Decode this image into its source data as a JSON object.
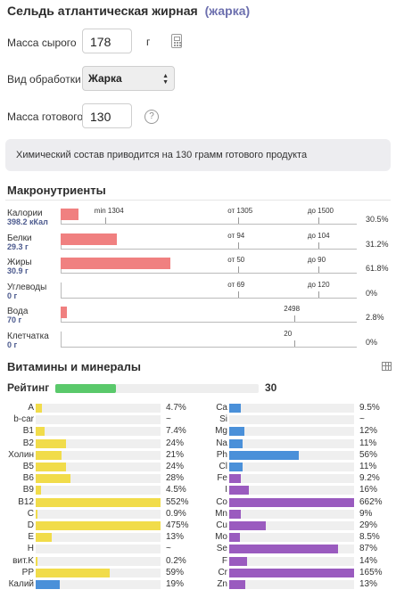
{
  "header": {
    "title": "Сельдь атлантическая жирная",
    "subtitle": "(жарка)"
  },
  "form": {
    "raw_mass_label": "Масса сырого",
    "raw_mass_value": "178",
    "raw_mass_unit": "г",
    "processing_label": "Вид обработки",
    "processing_value": "Жарка",
    "cooked_mass_label": "Масса готового",
    "cooked_mass_value": "130",
    "help_symbol": "?"
  },
  "note": "Химический состав приводится на 130 грамм готового продукта",
  "macros": {
    "title": "Макронутриенты",
    "items": [
      {
        "name": "Калории",
        "value": "398.2 кКал",
        "pct": "30.5%",
        "fill": 0.06,
        "ticks": [
          {
            "label": "min 1304",
            "pos": 0.15
          },
          {
            "label": "от 1305",
            "pos": 0.6
          },
          {
            "label": "до 1500",
            "pos": 0.87
          }
        ]
      },
      {
        "name": "Белки",
        "value": "29.3 г",
        "pct": "31.2%",
        "fill": 0.19,
        "ticks": [
          {
            "label": "от 94",
            "pos": 0.6
          },
          {
            "label": "до 104",
            "pos": 0.87
          }
        ]
      },
      {
        "name": "Жиры",
        "value": "30.9 г",
        "pct": "61.8%",
        "fill": 0.37,
        "ticks": [
          {
            "label": "от 50",
            "pos": 0.6
          },
          {
            "label": "до 90",
            "pos": 0.87
          }
        ]
      },
      {
        "name": "Углеводы",
        "value": "0 г",
        "pct": "0%",
        "fill": 0,
        "ticks": [
          {
            "label": "от 69",
            "pos": 0.6
          },
          {
            "label": "до 120",
            "pos": 0.87
          }
        ]
      },
      {
        "name": "Вода",
        "value": "70 г",
        "pct": "2.8%",
        "fill": 0.02,
        "ticks": [
          {
            "label": "2498",
            "pos": 0.79
          }
        ]
      },
      {
        "name": "Клетчатка",
        "value": "0 г",
        "pct": "0%",
        "fill": 0,
        "ticks": [
          {
            "label": "20",
            "pos": 0.79
          }
        ]
      }
    ]
  },
  "vitamins": {
    "title": "Витамины и минералы",
    "rating_label": "Рейтинг",
    "rating_value": "30",
    "rating_fill": 0.3,
    "colors": {
      "vitamin": "#f1dc4a",
      "mineral_blue": "#4a90d9",
      "mineral_purple": "#9a5bbf",
      "rating": "#5ac96b",
      "macro": "#f08080"
    },
    "left": [
      {
        "name": "A",
        "pct": "4.7%",
        "fill": 0.047,
        "color": "vitamin"
      },
      {
        "name": "b-car",
        "pct": "~",
        "fill": 0,
        "color": "vitamin"
      },
      {
        "name": "B1",
        "pct": "7.4%",
        "fill": 0.074,
        "color": "vitamin"
      },
      {
        "name": "B2",
        "pct": "24%",
        "fill": 0.24,
        "color": "vitamin"
      },
      {
        "name": "Холин",
        "pct": "21%",
        "fill": 0.21,
        "color": "vitamin"
      },
      {
        "name": "B5",
        "pct": "24%",
        "fill": 0.24,
        "color": "vitamin"
      },
      {
        "name": "B6",
        "pct": "28%",
        "fill": 0.28,
        "color": "vitamin"
      },
      {
        "name": "B9",
        "pct": "4.5%",
        "fill": 0.045,
        "color": "vitamin"
      },
      {
        "name": "B12",
        "pct": "552%",
        "fill": 1,
        "color": "vitamin"
      },
      {
        "name": "C",
        "pct": "0.9%",
        "fill": 0.009,
        "color": "vitamin"
      },
      {
        "name": "D",
        "pct": "475%",
        "fill": 1,
        "color": "vitamin"
      },
      {
        "name": "E",
        "pct": "13%",
        "fill": 0.13,
        "color": "vitamin"
      },
      {
        "name": "H",
        "pct": "~",
        "fill": 0,
        "color": "vitamin"
      },
      {
        "name": "вит.K",
        "pct": "0.2%",
        "fill": 0.002,
        "color": "vitamin"
      },
      {
        "name": "PP",
        "pct": "59%",
        "fill": 0.59,
        "color": "vitamin"
      },
      {
        "name": "Калий",
        "pct": "19%",
        "fill": 0.19,
        "color": "mineral_blue"
      }
    ],
    "right": [
      {
        "name": "Ca",
        "pct": "9.5%",
        "fill": 0.095,
        "color": "mineral_blue"
      },
      {
        "name": "Si",
        "pct": "~",
        "fill": 0,
        "color": "mineral_blue"
      },
      {
        "name": "Mg",
        "pct": "12%",
        "fill": 0.12,
        "color": "mineral_blue"
      },
      {
        "name": "Na",
        "pct": "11%",
        "fill": 0.11,
        "color": "mineral_blue"
      },
      {
        "name": "Ph",
        "pct": "56%",
        "fill": 0.56,
        "color": "mineral_blue"
      },
      {
        "name": "Cl",
        "pct": "11%",
        "fill": 0.11,
        "color": "mineral_blue"
      },
      {
        "name": "Fe",
        "pct": "9.2%",
        "fill": 0.092,
        "color": "mineral_purple"
      },
      {
        "name": "I",
        "pct": "16%",
        "fill": 0.16,
        "color": "mineral_purple"
      },
      {
        "name": "Co",
        "pct": "662%",
        "fill": 1,
        "color": "mineral_purple"
      },
      {
        "name": "Mn",
        "pct": "9%",
        "fill": 0.09,
        "color": "mineral_purple"
      },
      {
        "name": "Cu",
        "pct": "29%",
        "fill": 0.29,
        "color": "mineral_purple"
      },
      {
        "name": "Mo",
        "pct": "8.5%",
        "fill": 0.085,
        "color": "mineral_purple"
      },
      {
        "name": "Se",
        "pct": "87%",
        "fill": 0.87,
        "color": "mineral_purple"
      },
      {
        "name": "F",
        "pct": "14%",
        "fill": 0.14,
        "color": "mineral_purple"
      },
      {
        "name": "Cr",
        "pct": "165%",
        "fill": 1,
        "color": "mineral_purple"
      },
      {
        "name": "Zn",
        "pct": "13%",
        "fill": 0.13,
        "color": "mineral_purple"
      }
    ]
  }
}
